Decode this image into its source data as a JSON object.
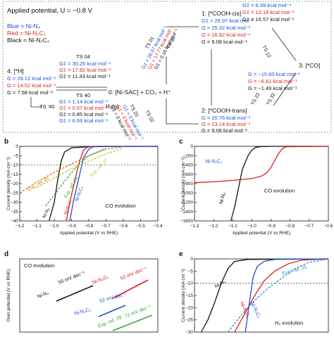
{
  "scheme": {
    "applied_potential": "Applied potential, U = −0.8 V",
    "legend": [
      {
        "text": "Blue = Ni-N₄",
        "color": "#1f4fd6"
      },
      {
        "text": "Red = Ni-N₃C₁",
        "color": "#d81f1f"
      },
      {
        "text": "Black = Ni-N₂C₂",
        "color": "#111111"
      }
    ],
    "state0": "0: [Ni-SAC] + CO₂ + H⁺",
    "state1": "1: [*COOH-cis]",
    "state2": "2: [*COOH-trans]",
    "state3": "3: [*CO]",
    "state4": "4: [*H]",
    "h2": "H₂(g)",
    "ts04": {
      "label": "TS 04",
      "lines": [
        "G‡ = 30.26 kcal mol⁻¹",
        "G‡ = 17.82 kcal mol⁻¹",
        "G‡ = 11.43 kcal mol⁻¹"
      ]
    },
    "ts40": {
      "label": "TS 40",
      "lines": [
        "G‡ = 1.14 kcal mol⁻¹",
        "G‡ = 0.57 kcal mol⁻¹",
        "G‡ = 0.85 kcal mol⁻¹"
      ]
    },
    "ts40p": {
      "label": "TS ′40",
      "lines": [
        "G‡ = 6.69 kcal mol⁻¹",
        "G‡ = 9.36 kcal mol⁻¹",
        "G‡ = 15.46 kcal mol⁻¹"
      ]
    },
    "g4": [
      "G = 29.12 kcal mol⁻¹",
      "G = 14.52 kcal mol⁻¹",
      "G = 7.58 kcal mol⁻¹"
    ],
    "g1": [
      "G‡ = 26.97 kcal mol⁻¹",
      "G = 25.32 kcal mol⁻¹",
      "G = 16.82 kcal mol⁻¹",
      "G = 9.08 kcal mol⁻¹"
    ],
    "g3": [
      "G‡ = 6.39 kcal mol⁻¹",
      "G‡ = 10.18 kcal mol⁻¹",
      "G‡ = 16.57 kcal mol⁻¹",
      "G = −15.60 kcal mol⁻¹",
      "G = −6.81 kcal mol⁻¹",
      "G = −1.49 kcal mol⁻¹"
    ],
    "g2": [
      "G = 20.76 kcal mol⁻¹",
      "G = 13.14 kcal mol⁻¹",
      "G = 9.08 kcal mol⁻¹"
    ],
    "ts_small": [
      "TS 01",
      "TS 10",
      "TS 02",
      "TS 20",
      "TS 12",
      "TS 23",
      "TS 32"
    ],
    "diag_left_top": [
      "G‡ = 26.97 kcal mol⁻¹",
      "G‡ = 17.77 kcal mol⁻¹",
      "G‡ = 0.16 kcal mol⁻¹"
    ],
    "diag_left_bot": [
      "G‡ = 0 kcal mol⁻¹",
      "G‡ = 0 kcal mol⁻¹",
      "G‡ = 0 kcal mol⁻¹"
    ]
  },
  "charts": {
    "b": {
      "letter": "b",
      "ylabel": "Current density (mA cm⁻²)",
      "xlabel": "Applied potential (V vs RHE)",
      "ann": "CO evolution",
      "xticks": [
        "−1.2",
        "−1.1",
        "−1.0",
        "−0.9",
        "−0.8",
        "−0.7",
        "−0.6",
        "−0.5",
        "−0.4"
      ],
      "yticks": [
        "0",
        "−5",
        "−10",
        "−15",
        "−20",
        "−25",
        "−30",
        "−35",
        "−40"
      ],
      "labels": [
        "Ni-N₄",
        "Ni-N₃C₁",
        "Ni-N₂C₂",
        "Exp. ref. 25",
        "Exp. ref. 29",
        "Exp. ref. 27"
      ]
    },
    "c": {
      "letter": "c",
      "ylabel": "Current density (mA cm⁻²)",
      "xlabel": "Applied potential (V vs RHE)",
      "ann": "CO evolution",
      "xticks": [
        "−1.3",
        "−1.2",
        "−1.1",
        "−1.0",
        "−0.9",
        "−0.8",
        "−0.7",
        "−0.6"
      ],
      "yticks": [
        "0",
        "−200",
        "−400",
        "−600",
        "−800",
        "−1000",
        "−1200",
        "−1400",
        "−1600"
      ],
      "labels": [
        "Ni-N₂C₁",
        "Ni-N₄"
      ]
    },
    "d": {
      "letter": "d",
      "ylabel": "Over potential (V vs RHE)",
      "ann": "CO evolution",
      "labels": [
        "Ni-N₄",
        "55 mV dec⁻¹",
        "Ni-N₃C₁",
        "62 mV dec⁻¹",
        "Ni-N₂C₂",
        "52 mV dec⁻¹",
        "Exp. ref. 29",
        "72 mV dec⁻¹"
      ]
    },
    "e": {
      "letter": "e",
      "ylabel": "Current density (mA cm⁻²)",
      "ann": "H₂ evolution",
      "yticks": [
        "0",
        "−5",
        "−10",
        "−15",
        "−20",
        "−25",
        "−30"
      ],
      "labels": [
        "Ni-N₄",
        "Exp. ref. 25",
        "Ni-N₃C₁",
        "Ni-N₂C₂"
      ]
    }
  },
  "chart_data": [
    {
      "type": "line",
      "panel": "b",
      "title": "",
      "xlabel": "Applied potential (V vs RHE)",
      "ylabel": "Current density (mA cm⁻²)",
      "xlim": [
        -1.2,
        -0.4
      ],
      "ylim": [
        -40,
        0
      ],
      "series": [
        {
          "name": "Ni-N₄",
          "color": "#111111",
          "x": [
            -1.03,
            -1.0,
            -0.98,
            -0.96,
            -0.94,
            -0.9,
            -0.8,
            -0.4
          ],
          "y": [
            -40,
            -30,
            -18,
            -8,
            -3,
            -0.8,
            -0.2,
            0
          ]
        },
        {
          "name": "Ni-N₃C₁",
          "color": "#d81f1f",
          "x": [
            -0.93,
            -0.91,
            -0.89,
            -0.87,
            -0.85,
            -0.83,
            -0.81,
            -0.78,
            -0.7,
            -0.4
          ],
          "y": [
            -40,
            -30,
            -22,
            -14,
            -7,
            -2,
            -0.5,
            0,
            0,
            0
          ]
        },
        {
          "name": "Ni-N₂C₂",
          "color": "#1f4fd6",
          "x": [
            -0.91,
            -0.89,
            -0.87,
            -0.85,
            -0.83,
            -0.8,
            -0.78,
            -0.75,
            -0.7,
            -0.4
          ],
          "y": [
            -40,
            -30,
            -22,
            -14,
            -6,
            -1.5,
            -0.4,
            0,
            0,
            0
          ]
        },
        {
          "name": "Exp. ref. 25",
          "color": "#d97a0a",
          "x": [
            -1.2,
            -1.1,
            -1.0,
            -0.9,
            -0.8,
            -0.7,
            -0.6
          ],
          "y": [
            -25,
            -19,
            -14,
            -9.5,
            -5,
            -1.5,
            -0.2
          ]
        },
        {
          "name": "Exp. ref. 29",
          "color": "#3aa53a",
          "x": [
            -1.05,
            -1.0,
            -0.95,
            -0.9,
            -0.85,
            -0.8,
            -0.7
          ],
          "y": [
            -32,
            -26,
            -20,
            -14,
            -9,
            -5,
            -1
          ]
        },
        {
          "name": "Exp. ref. 27",
          "color": "#b8c43a",
          "x": [
            -1.1,
            -1.0,
            -0.9,
            -0.8,
            -0.7,
            -0.6
          ],
          "y": [
            -22,
            -17,
            -12,
            -8,
            -4,
            -1
          ]
        }
      ]
    },
    {
      "type": "line",
      "panel": "c",
      "title": "",
      "xlabel": "Applied potential (V vs RHE)",
      "ylabel": "Current density (mA cm⁻²)",
      "xlim": [
        -1.3,
        -0.6
      ],
      "ylim": [
        -1600,
        0
      ],
      "series": [
        {
          "name": "Ni-N₄",
          "color": "#111111",
          "x": [
            -1.11,
            -1.09,
            -1.07,
            -1.05,
            -1.02,
            -1.0,
            -0.98,
            -0.95,
            -0.9,
            -0.6
          ],
          "y": [
            -1600,
            -1300,
            -900,
            -500,
            -200,
            -80,
            -20,
            -5,
            0,
            0
          ]
        },
        {
          "name": "Ni-N₂C₁",
          "color": "#d81f1f",
          "x": [
            -1.3,
            -1.2,
            -1.1,
            -1.0,
            -0.95,
            -0.92,
            -0.9,
            -0.88,
            -0.86,
            -0.84,
            -0.82,
            -0.6
          ],
          "y": [
            -780,
            -760,
            -730,
            -690,
            -640,
            -560,
            -450,
            -300,
            -150,
            -50,
            -10,
            0
          ]
        }
      ]
    },
    {
      "type": "line",
      "panel": "d",
      "title": "",
      "ylabel": "Over potential (V vs RHE)",
      "series": [
        {
          "name": "Ni-N₄",
          "color": "#111111",
          "slope": "55 mV dec⁻¹"
        },
        {
          "name": "Ni-N₃C₁",
          "color": "#d81f1f",
          "slope": "62 mV dec⁻¹"
        },
        {
          "name": "Ni-N₂C₂",
          "color": "#1f4fd6",
          "slope": "52 mV dec⁻¹"
        },
        {
          "name": "Exp. ref. 29",
          "color": "#3aa53a",
          "slope": "72 mV dec⁻¹"
        }
      ]
    },
    {
      "type": "line",
      "panel": "e",
      "title": "",
      "ylabel": "Current density (mA cm⁻²)",
      "ylim": [
        -30,
        0
      ],
      "series": [
        {
          "name": "Ni-N₄",
          "color": "#111111",
          "frac_x": [
            0.05,
            0.1,
            0.15,
            0.2,
            0.25,
            0.3,
            0.4,
            1.0
          ],
          "y": [
            -30,
            -25,
            -18,
            -10,
            -4,
            -1,
            -0.2,
            0
          ]
        },
        {
          "name": "Exp. ref. 25",
          "color": "#1f8fd6",
          "frac_x": [
            0.25,
            0.35,
            0.45,
            0.55,
            0.65,
            0.75,
            0.85,
            1.0
          ],
          "y": [
            -30,
            -23,
            -17,
            -12,
            -8,
            -4,
            -1.5,
            0
          ]
        },
        {
          "name": "Ni-N₃C₁",
          "color": "#d81f1f",
          "frac_x": [
            0.3,
            0.38,
            0.45,
            0.52,
            0.6,
            0.7,
            0.8,
            1.0
          ],
          "y": [
            -30,
            -22,
            -15,
            -9,
            -5,
            -2,
            -0.5,
            0
          ]
        },
        {
          "name": "Ni-N₂C₂",
          "color": "#1f4fd6",
          "frac_x": [
            0.38,
            0.4,
            0.42,
            0.44,
            0.47,
            0.52,
            0.6,
            1.0
          ],
          "y": [
            -30,
            -22,
            -14,
            -7,
            -3,
            -1,
            -0.2,
            0
          ]
        }
      ]
    }
  ]
}
